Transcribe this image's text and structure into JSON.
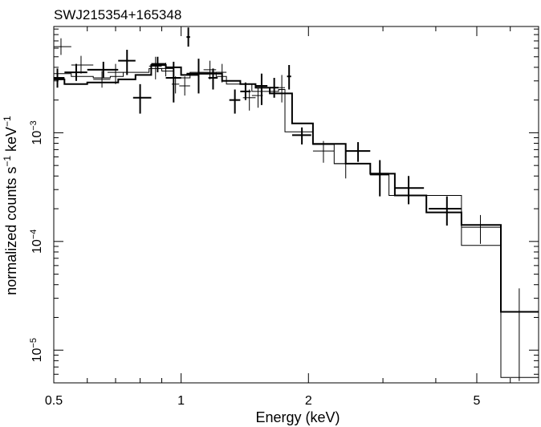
{
  "chart_data": {
    "type": "scatter",
    "title": "SWJ215354+165348",
    "xlabel": "Energy (keV)",
    "ylabel_main": "normalized counts s",
    "ylabel_sup1": "−1",
    "ylabel_mid": " keV",
    "ylabel_sup2": "−1",
    "x_scale": "log",
    "y_scale": "log",
    "xlim": [
      0.5,
      7.0
    ],
    "ylim": [
      5e-06,
      0.0095
    ],
    "grid": false,
    "legend": "none",
    "x_ticks": [
      {
        "value": 0.5,
        "label": "0.5"
      },
      {
        "value": 1,
        "label": "1"
      },
      {
        "value": 2,
        "label": "2"
      },
      {
        "value": 5,
        "label": "5"
      }
    ],
    "x_minor_ticks": [
      0.6,
      0.7,
      0.8,
      0.9,
      3,
      4,
      6,
      7
    ],
    "y_ticks": [
      {
        "value": 1e-05,
        "base": "10",
        "exp": "−5"
      },
      {
        "value": 0.0001,
        "base": "10",
        "exp": "−4"
      },
      {
        "value": 0.001,
        "base": "10",
        "exp": "−3"
      }
    ],
    "y_minor_ticks": [
      6e-06,
      7e-06,
      8e-06,
      9e-06,
      2e-05,
      3e-05,
      4e-05,
      5e-05,
      6e-05,
      7e-05,
      8e-05,
      9e-05,
      0.0002,
      0.0003,
      0.0004,
      0.0005,
      0.0006,
      0.0007,
      0.0008,
      0.0009,
      0.002,
      0.003,
      0.004,
      0.005,
      0.006,
      0.007,
      0.008,
      0.009
    ],
    "series": [
      {
        "weight": "thick",
        "points": [
          {
            "x": 0.51,
            "xlo": 0.5,
            "xhi": 0.53,
            "y": 0.0032,
            "ylo": 0.0026,
            "yhi": 0.0039
          },
          {
            "x": 0.565,
            "xlo": 0.53,
            "xhi": 0.6,
            "y": 0.0036,
            "ylo": 0.003,
            "yhi": 0.0043
          },
          {
            "x": 0.655,
            "xlo": 0.6,
            "xhi": 0.71,
            "y": 0.0038,
            "ylo": 0.0032,
            "yhi": 0.0045
          },
          {
            "x": 0.745,
            "xlo": 0.71,
            "xhi": 0.78,
            "y": 0.0046,
            "ylo": 0.0034,
            "yhi": 0.0058
          },
          {
            "x": 0.8,
            "xlo": 0.77,
            "xhi": 0.85,
            "y": 0.0021,
            "ylo": 0.0015,
            "yhi": 0.0028
          },
          {
            "x": 0.88,
            "xlo": 0.85,
            "xhi": 0.92,
            "y": 0.0043,
            "ylo": 0.0036,
            "yhi": 0.005
          },
          {
            "x": 0.96,
            "xlo": 0.92,
            "xhi": 1.0,
            "y": 0.0032,
            "ylo": 0.0019,
            "yhi": 0.0045
          },
          {
            "x": 1.04,
            "xlo": 1.03,
            "xhi": 1.05,
            "y": 0.0076,
            "ylo": 0.0062,
            "yhi": 0.0093
          },
          {
            "x": 1.1,
            "xlo": 1.03,
            "xhi": 1.17,
            "y": 0.0035,
            "ylo": 0.0023,
            "yhi": 0.0048
          },
          {
            "x": 1.19,
            "xlo": 1.16,
            "xhi": 1.22,
            "y": 0.0032,
            "ylo": 0.0025,
            "yhi": 0.0039
          },
          {
            "x": 1.34,
            "xlo": 1.3,
            "xhi": 1.38,
            "y": 0.002,
            "ylo": 0.0015,
            "yhi": 0.0025
          },
          {
            "x": 1.42,
            "xlo": 1.38,
            "xhi": 1.46,
            "y": 0.0024,
            "ylo": 0.002,
            "yhi": 0.0029
          },
          {
            "x": 1.55,
            "xlo": 1.5,
            "xhi": 1.6,
            "y": 0.0027,
            "ylo": 0.0018,
            "yhi": 0.0035
          },
          {
            "x": 1.66,
            "xlo": 1.62,
            "xhi": 1.7,
            "y": 0.0026,
            "ylo": 0.0021,
            "yhi": 0.0032
          },
          {
            "x": 1.8,
            "xlo": 1.78,
            "xhi": 1.82,
            "y": 0.0033,
            "ylo": 0.0025,
            "yhi": 0.0042
          },
          {
            "x": 1.93,
            "xlo": 1.83,
            "xhi": 2.03,
            "y": 0.00095,
            "ylo": 0.00078,
            "yhi": 0.00112
          },
          {
            "x": 2.62,
            "xlo": 2.45,
            "xhi": 2.8,
            "y": 0.00068,
            "ylo": 0.00054,
            "yhi": 0.00082
          },
          {
            "x": 2.95,
            "xlo": 2.8,
            "xhi": 3.1,
            "y": 0.00042,
            "ylo": 0.00026,
            "yhi": 0.00056
          },
          {
            "x": 3.45,
            "xlo": 3.2,
            "xhi": 3.75,
            "y": 0.00031,
            "ylo": 0.00022,
            "yhi": 0.0004
          },
          {
            "x": 4.25,
            "xlo": 3.85,
            "xhi": 4.6,
            "y": 0.0002,
            "ylo": 0.00014,
            "yhi": 0.00026
          }
        ]
      },
      {
        "weight": "thin",
        "points": [
          {
            "x": 0.52,
            "xlo": 0.5,
            "xhi": 0.55,
            "y": 0.0062,
            "ylo": 0.0052,
            "yhi": 0.0074
          },
          {
            "x": 0.58,
            "xlo": 0.55,
            "xhi": 0.62,
            "y": 0.0042,
            "ylo": 0.0035,
            "yhi": 0.0051
          },
          {
            "x": 0.65,
            "xlo": 0.62,
            "xhi": 0.68,
            "y": 0.0031,
            "ylo": 0.0026,
            "yhi": 0.0037
          },
          {
            "x": 0.7,
            "xlo": 0.67,
            "xhi": 0.73,
            "y": 0.0036,
            "ylo": 0.0028,
            "yhi": 0.0043
          },
          {
            "x": 0.87,
            "xlo": 0.84,
            "xhi": 0.9,
            "y": 0.0041,
            "ylo": 0.0031,
            "yhi": 0.005
          },
          {
            "x": 0.92,
            "xlo": 0.88,
            "xhi": 0.96,
            "y": 0.0039,
            "ylo": 0.0033,
            "yhi": 0.0044
          },
          {
            "x": 0.97,
            "xlo": 0.95,
            "xhi": 0.99,
            "y": 0.0028,
            "ylo": 0.0023,
            "yhi": 0.0033
          },
          {
            "x": 1.02,
            "xlo": 0.99,
            "xhi": 1.05,
            "y": 0.0027,
            "ylo": 0.0022,
            "yhi": 0.0033
          },
          {
            "x": 1.17,
            "xlo": 1.13,
            "xhi": 1.21,
            "y": 0.0038,
            "ylo": 0.0031,
            "yhi": 0.0046
          },
          {
            "x": 1.25,
            "xlo": 1.21,
            "xhi": 1.28,
            "y": 0.0036,
            "ylo": 0.0029,
            "yhi": 0.0043
          },
          {
            "x": 1.45,
            "xlo": 1.4,
            "xhi": 1.5,
            "y": 0.0021,
            "ylo": 0.0016,
            "yhi": 0.0025
          },
          {
            "x": 1.52,
            "xlo": 1.47,
            "xhi": 1.56,
            "y": 0.0022,
            "ylo": 0.0017,
            "yhi": 0.0026
          },
          {
            "x": 1.73,
            "xlo": 1.7,
            "xhi": 1.76,
            "y": 0.0026,
            "ylo": 0.0019,
            "yhi": 0.0034
          },
          {
            "x": 2.17,
            "xlo": 2.05,
            "xhi": 2.3,
            "y": 0.00068,
            "ylo": 0.00053,
            "yhi": 0.00084
          },
          {
            "x": 2.45,
            "xlo": 2.3,
            "xhi": 2.6,
            "y": 0.00052,
            "ylo": 0.00038,
            "yhi": 0.00068
          },
          {
            "x": 2.95,
            "xlo": 2.8,
            "xhi": 3.1,
            "y": 0.00041,
            "ylo": 0.00033,
            "yhi": 0.0005
          },
          {
            "x": 5.1,
            "xlo": 4.6,
            "xhi": 5.7,
            "y": 0.000135,
            "ylo": 9.5e-05,
            "yhi": 0.000175
          },
          {
            "x": 6.3,
            "xlo": 5.7,
            "xhi": 7.0,
            "y": 2.25e-05,
            "ylo": 5.2e-06,
            "yhi": 3.7e-05
          }
        ]
      }
    ],
    "models": [
      {
        "weight": "thick",
        "steps": [
          {
            "xlo": 0.5,
            "xhi": 0.53,
            "y": 0.0031
          },
          {
            "xlo": 0.53,
            "xhi": 0.6,
            "y": 0.0028
          },
          {
            "xlo": 0.6,
            "xhi": 0.71,
            "y": 0.0029
          },
          {
            "xlo": 0.71,
            "xhi": 0.78,
            "y": 0.0031
          },
          {
            "xlo": 0.78,
            "xhi": 0.85,
            "y": 0.0034
          },
          {
            "xlo": 0.85,
            "xhi": 0.92,
            "y": 0.0042
          },
          {
            "xlo": 0.92,
            "xhi": 1.0,
            "y": 0.004
          },
          {
            "xlo": 1.0,
            "xhi": 1.1,
            "y": 0.0034
          },
          {
            "xlo": 1.1,
            "xhi": 1.25,
            "y": 0.0035
          },
          {
            "xlo": 1.25,
            "xhi": 1.38,
            "y": 0.003
          },
          {
            "xlo": 1.38,
            "xhi": 1.5,
            "y": 0.0028
          },
          {
            "xlo": 1.5,
            "xhi": 1.62,
            "y": 0.0026
          },
          {
            "xlo": 1.62,
            "xhi": 1.83,
            "y": 0.0023
          },
          {
            "xlo": 1.83,
            "xhi": 2.05,
            "y": 0.00122
          },
          {
            "xlo": 2.05,
            "xhi": 2.45,
            "y": 0.00079
          },
          {
            "xlo": 2.45,
            "xhi": 2.8,
            "y": 0.00052
          },
          {
            "xlo": 2.8,
            "xhi": 3.2,
            "y": 0.00042
          },
          {
            "xlo": 3.2,
            "xhi": 3.8,
            "y": 0.000265
          },
          {
            "xlo": 3.8,
            "xhi": 4.6,
            "y": 0.000185
          },
          {
            "xlo": 4.6,
            "xhi": 5.7,
            "y": 0.000142
          },
          {
            "xlo": 5.7,
            "xhi": 7.0,
            "y": 2.25e-05
          }
        ]
      },
      {
        "weight": "thin",
        "steps": [
          {
            "xlo": 0.5,
            "xhi": 0.55,
            "y": 0.0035
          },
          {
            "xlo": 0.55,
            "xhi": 0.62,
            "y": 0.0033
          },
          {
            "xlo": 0.62,
            "xhi": 0.68,
            "y": 0.0032
          },
          {
            "xlo": 0.68,
            "xhi": 0.73,
            "y": 0.0033
          },
          {
            "xlo": 0.73,
            "xhi": 0.84,
            "y": 0.0036
          },
          {
            "xlo": 0.84,
            "xhi": 0.9,
            "y": 0.0039
          },
          {
            "xlo": 0.9,
            "xhi": 0.96,
            "y": 0.0037
          },
          {
            "xlo": 0.96,
            "xhi": 1.05,
            "y": 0.0032
          },
          {
            "xlo": 1.05,
            "xhi": 1.21,
            "y": 0.0036
          },
          {
            "xlo": 1.21,
            "xhi": 1.28,
            "y": 0.0033
          },
          {
            "xlo": 1.28,
            "xhi": 1.47,
            "y": 0.0028
          },
          {
            "xlo": 1.47,
            "xhi": 1.7,
            "y": 0.0024
          },
          {
            "xlo": 1.7,
            "xhi": 1.76,
            "y": 0.0025
          },
          {
            "xlo": 1.76,
            "xhi": 2.05,
            "y": 0.00102
          },
          {
            "xlo": 2.05,
            "xhi": 2.3,
            "y": 0.00078
          },
          {
            "xlo": 2.3,
            "xhi": 2.8,
            "y": 0.00052
          },
          {
            "xlo": 2.8,
            "xhi": 3.1,
            "y": 0.00041
          },
          {
            "xlo": 3.1,
            "xhi": 4.6,
            "y": 0.000265
          },
          {
            "xlo": 4.6,
            "xhi": 5.7,
            "y": 9.2e-05
          },
          {
            "xlo": 5.7,
            "xhi": 7.0,
            "y": 5.6e-06
          }
        ]
      }
    ]
  }
}
